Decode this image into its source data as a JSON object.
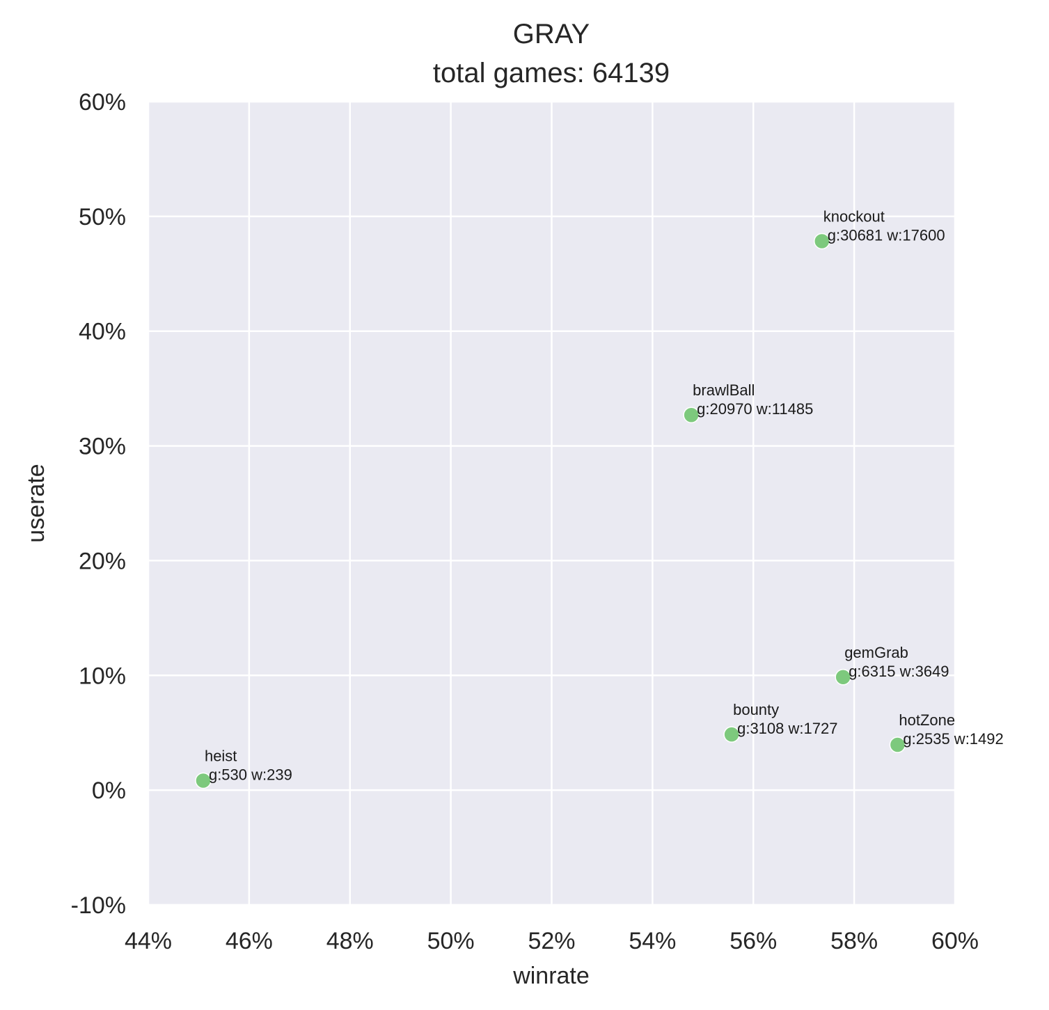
{
  "chart_data": {
    "type": "scatter",
    "title": "GRAY",
    "subtitle": "total games: 64139",
    "xlabel": "winrate",
    "ylabel": "userate",
    "xlim": [
      44,
      60
    ],
    "ylim": [
      -10,
      60
    ],
    "xticks": [
      44,
      46,
      48,
      50,
      52,
      54,
      56,
      58,
      60
    ],
    "yticks": [
      -10,
      0,
      10,
      20,
      30,
      40,
      50,
      60
    ],
    "xtick_labels": [
      "44%",
      "46%",
      "48%",
      "50%",
      "52%",
      "54%",
      "56%",
      "58%",
      "60%"
    ],
    "ytick_labels": [
      "-10%",
      "0%",
      "10%",
      "20%",
      "30%",
      "40%",
      "50%",
      "60%"
    ],
    "grid": true,
    "colors": {
      "background": "#eaeaf2",
      "grid": "#ffffff",
      "point": "#7dc97d"
    },
    "points": [
      {
        "name": "knockout",
        "stats": "g:30681 w:17600",
        "x": 57.36,
        "y": 47.84
      },
      {
        "name": "brawlBall",
        "stats": "g:20970 w:11485",
        "x": 54.77,
        "y": 32.69
      },
      {
        "name": "gemGrab",
        "stats": "g:6315 w:3649",
        "x": 57.78,
        "y": 9.85
      },
      {
        "name": "bounty",
        "stats": "g:3108 w:1727",
        "x": 55.57,
        "y": 4.85
      },
      {
        "name": "hotZone",
        "stats": "g:2535 w:1492",
        "x": 58.86,
        "y": 3.95
      },
      {
        "name": "heist",
        "stats": "g:530 w:239",
        "x": 45.09,
        "y": 0.83
      }
    ]
  }
}
